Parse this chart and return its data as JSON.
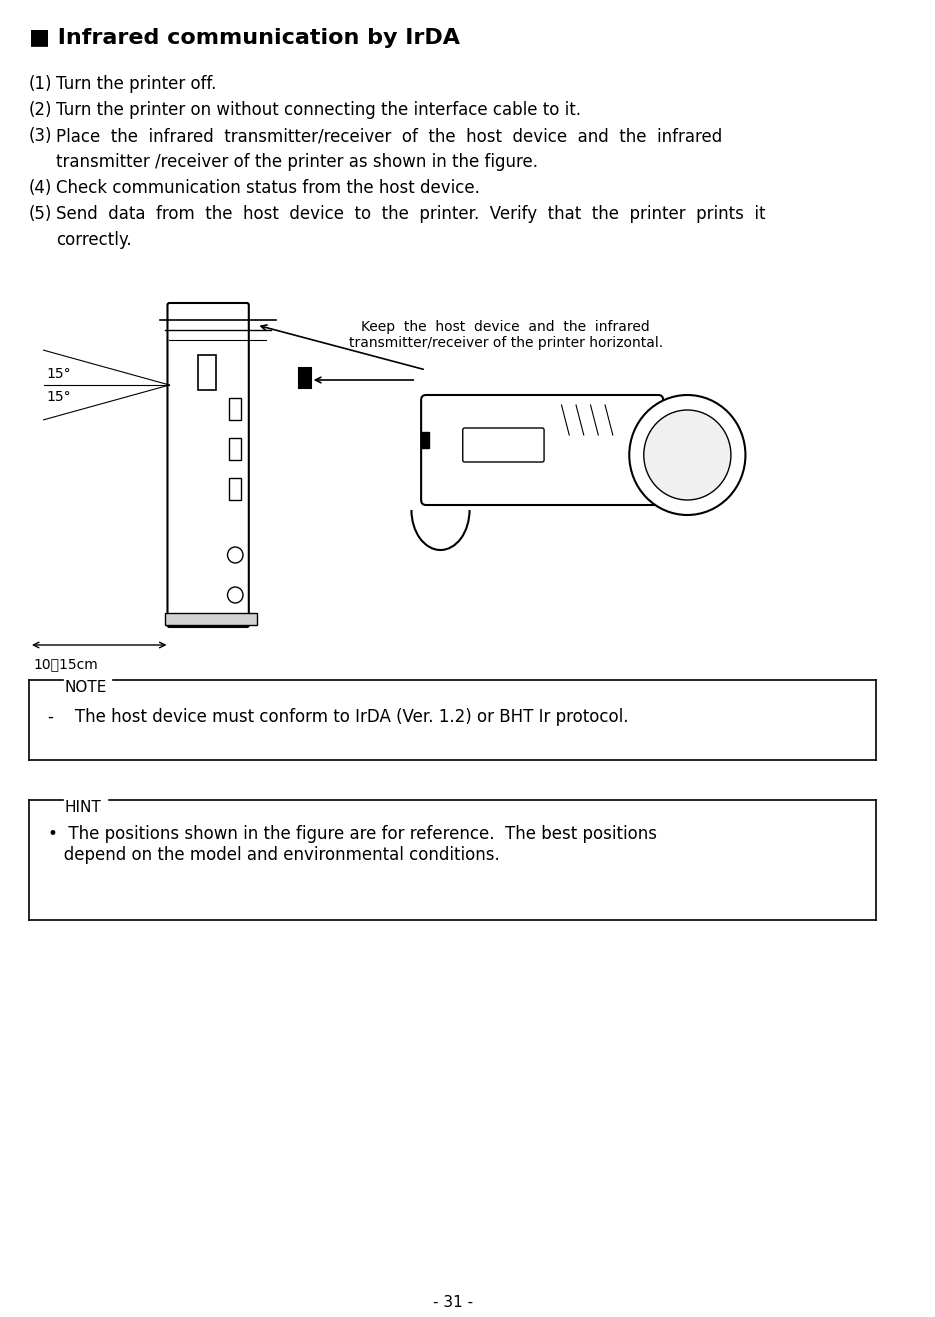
{
  "title": "■ Infrared communication by IrDA",
  "title_fontsize": 16,
  "body_fontsize": 12,
  "bg_color": "#ffffff",
  "text_color": "#000000",
  "page_number": "- 31 -",
  "steps": [
    "(1)  Turn the printer off.",
    "(2)  Turn the printer on without connecting the interface cable to it.",
    "(3)  Place  the  infrared  transmitter/receiver  of  the  host  device  and  the  infrared\n      transmitter /receiver of the printer as shown in the figure.",
    "(4)  Check communication status from the host device.",
    "(5)  Send  data  from  the  host  device  to  the  printer.  Verify  that  the  printer  prints  it\n      correctly."
  ],
  "note_label": "NOTE",
  "note_text": "-    The host device must conform to IrDA (Ver. 1.2) or BHT Ir protocol.",
  "hint_label": "HINT",
  "hint_bullet": "•  The positions shown in the figure are for reference.  The best positions\n   depend on the model and environmental conditions.",
  "figure_caption": "Keep  the  host  device  and  the  infrared\ntransmitter/receiver of the printer horizontal.",
  "distance_label": "10～15cm",
  "angle1_label": "15°",
  "angle2_label": "15°"
}
